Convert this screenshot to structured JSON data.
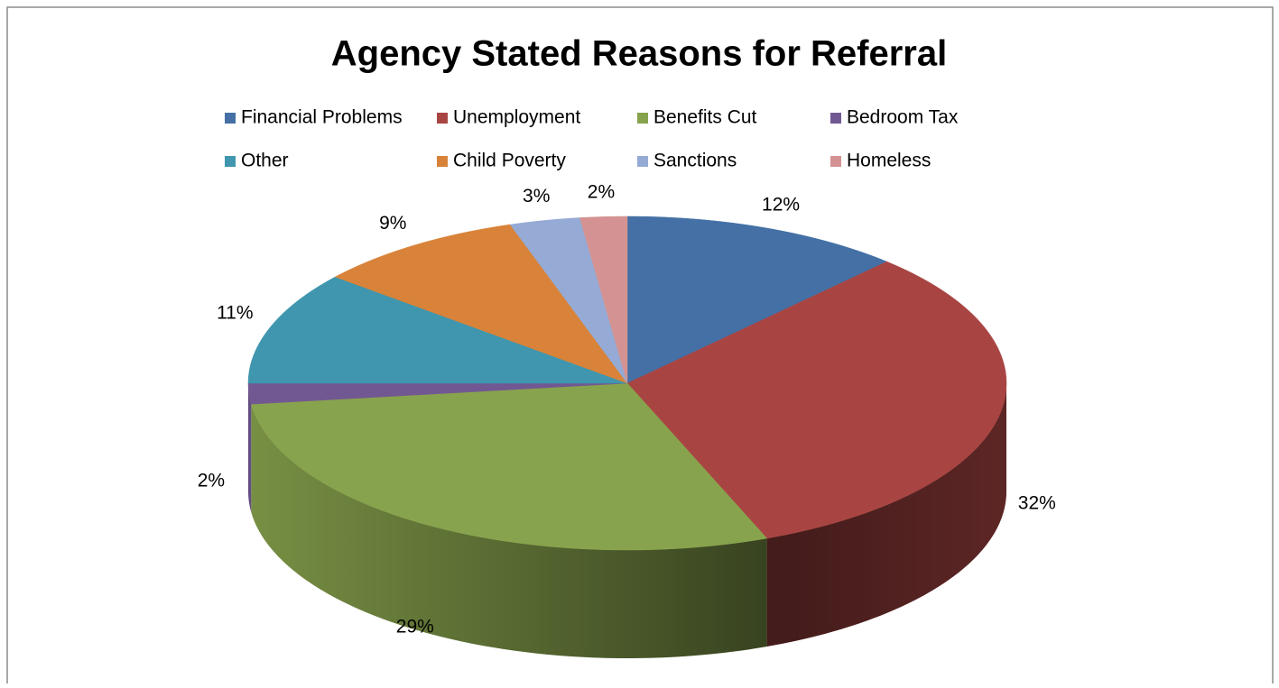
{
  "chart_data": {
    "type": "pie3d",
    "title": "Agency Stated Reasons for Referral",
    "categories": [
      "Financial Problems",
      "Unemployment",
      "Benefits Cut",
      "Bedroom Tax",
      "Other",
      "Child Poverty",
      "Sanctions",
      "Homeless"
    ],
    "values": [
      12,
      32,
      29,
      2,
      11,
      9,
      3,
      2
    ],
    "value_labels": [
      "12%",
      "32%",
      "29%",
      "2%",
      "11%",
      "9%",
      "3%",
      "2%"
    ],
    "colors": [
      "#4470a5",
      "#a84543",
      "#88a34d",
      "#715892",
      "#3f96ae",
      "#d88339",
      "#95aad5",
      "#d49392"
    ],
    "legend": "top"
  }
}
